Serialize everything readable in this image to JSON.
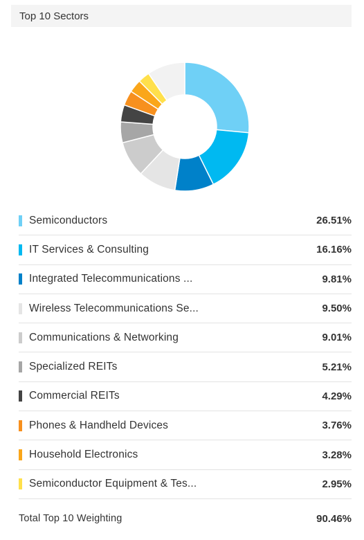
{
  "header": {
    "title": "Top 10 Sectors"
  },
  "chart_data": {
    "type": "pie",
    "variant": "donut",
    "categories": [
      "Semiconductors",
      "IT Services & Consulting",
      "Integrated Telecommunications ...",
      "Wireless Telecommunications Se...",
      "Communications & Networking",
      "Specialized REITs",
      "Commercial REITs",
      "Phones & Handheld Devices",
      "Household Electronics",
      "Semiconductor Equipment & Tes..."
    ],
    "values": [
      26.51,
      16.16,
      9.81,
      9.5,
      9.01,
      5.21,
      4.29,
      3.76,
      3.28,
      2.95
    ],
    "labels": [
      "26.51%",
      "16.16%",
      "9.81%",
      "9.50%",
      "9.01%",
      "5.21%",
      "4.29%",
      "3.76%",
      "3.28%",
      "2.95%"
    ],
    "colors": [
      "#6fd0f6",
      "#00b9f1",
      "#0081c9",
      "#e5e5e5",
      "#cccccc",
      "#a6a6a6",
      "#444444",
      "#f7901e",
      "#faa61a",
      "#ffe04b"
    ],
    "remainder_color": "#f2f2f2",
    "total_label": "Total Top 10 Weighting",
    "total_value": "90.46%"
  }
}
